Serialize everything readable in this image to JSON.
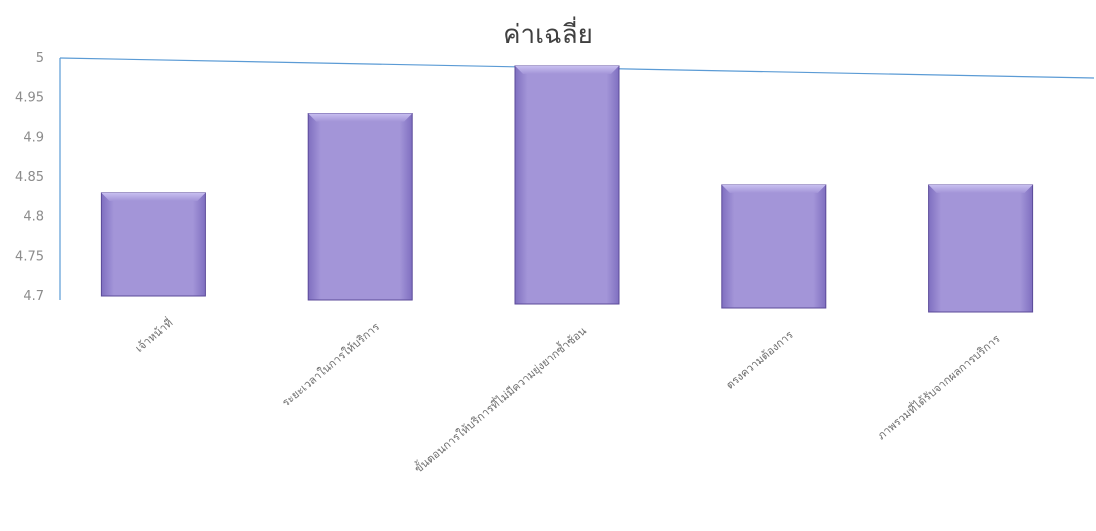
{
  "chart_data": {
    "type": "bar",
    "title": "ค่าเฉลี่ย",
    "categories": [
      "เจ้าหน้าที่",
      "ระยะเวลาในการให้บริการ",
      "ขั้นตอนการให้บริการที่ไม่มีความยุ่งยากซ้ำซ้อน",
      "ตรงความต้องการ",
      "ภาพรวมที่ได้รับจากผลการบริการ"
    ],
    "values": [
      4.83,
      4.93,
      4.99,
      4.84,
      4.84
    ],
    "yticks": [
      "4.7",
      "4.75",
      "4.8",
      "4.85",
      "4.9",
      "4.95",
      "5"
    ],
    "ylim": [
      4.7,
      5
    ],
    "xlabel": "",
    "ylabel": "",
    "grid": false,
    "legend": "none",
    "colors": {
      "bar": "#9d8fd0",
      "bar_edge": "#5b4a99",
      "axis": "#5b9bd5",
      "text": "#404040"
    }
  }
}
